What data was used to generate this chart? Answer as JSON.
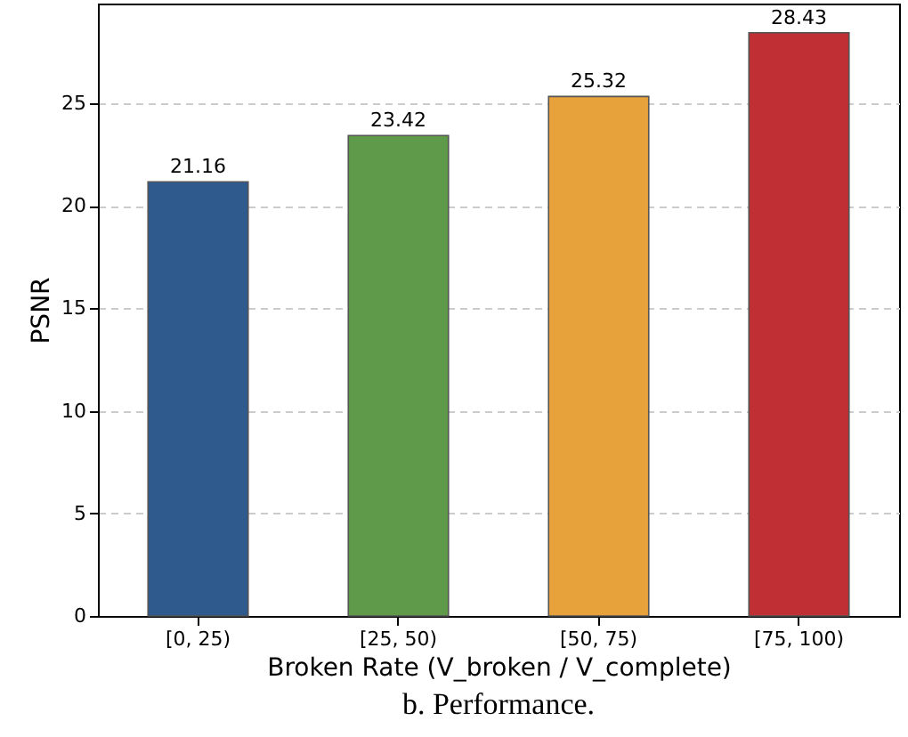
{
  "chart_data": {
    "type": "bar",
    "title": "b. Performance.",
    "xlabel": "Broken Rate (V_broken / V_complete)",
    "ylabel": "PSNR",
    "categories": [
      "[0, 25)",
      "[25, 50)",
      "[50, 75)",
      "[75, 100)"
    ],
    "values": [
      21.16,
      23.42,
      25.32,
      28.43
    ],
    "colors": [
      "#2e5a8e",
      "#5e9a4a",
      "#e8a23c",
      "#bf2f33"
    ],
    "ylim": [
      0,
      29.85
    ],
    "yticks": [
      0,
      5,
      10,
      15,
      20,
      25
    ],
    "grid": "y",
    "data_labels": true
  }
}
